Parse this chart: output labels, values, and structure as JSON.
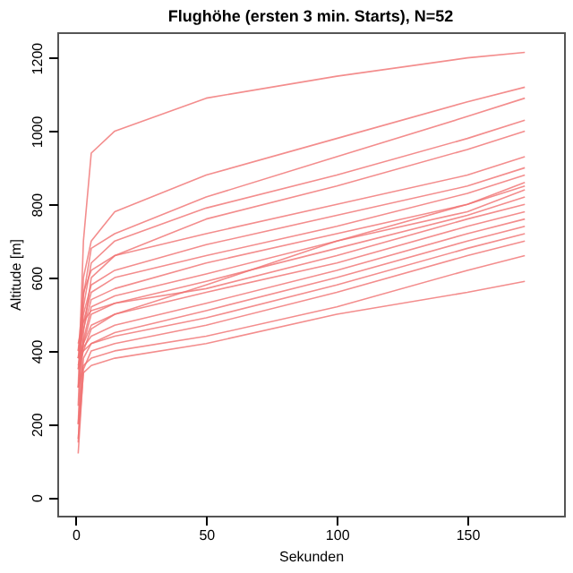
{
  "chart_data": {
    "type": "line",
    "title": "Flughöhe (ersten 3 min. Starts), N=52",
    "xlabel": "Sekunden",
    "ylabel": "Altitude [m]",
    "x": [
      1,
      3,
      6,
      15,
      50,
      100,
      150,
      172
    ],
    "xlim": [
      -7,
      187
    ],
    "xticks": [
      0,
      50,
      100,
      150
    ],
    "ylim": [
      -50,
      1270
    ],
    "yticks": [
      0,
      200,
      400,
      600,
      800,
      1000,
      1200
    ],
    "grid": false,
    "legend": false,
    "marker": "none",
    "line_style": "solid",
    "series": [
      {
        "color": "#f07070",
        "values": [
          300,
          700,
          940,
          1000,
          1090,
          1150,
          1200,
          1215
        ]
      },
      {
        "color": "#f07070",
        "values": [
          250,
          600,
          700,
          780,
          880,
          980,
          1080,
          1120
        ]
      },
      {
        "color": "#f07070",
        "values": [
          200,
          550,
          680,
          720,
          820,
          930,
          1040,
          1090
        ]
      },
      {
        "color": "#f07070",
        "values": [
          380,
          520,
          640,
          700,
          790,
          880,
          980,
          1030
        ]
      },
      {
        "color": "#f07070",
        "values": [
          150,
          450,
          600,
          660,
          760,
          850,
          950,
          1000
        ]
      },
      {
        "color": "#f07070",
        "values": [
          400,
          560,
          620,
          660,
          720,
          800,
          880,
          930
        ]
      },
      {
        "color": "#f07070",
        "values": [
          350,
          500,
          580,
          620,
          690,
          770,
          850,
          900
        ]
      },
      {
        "color": "#f07070",
        "values": [
          420,
          480,
          560,
          600,
          660,
          740,
          830,
          880
        ]
      },
      {
        "color": "#f07070",
        "values": [
          380,
          460,
          540,
          570,
          640,
          720,
          800,
          860
        ]
      },
      {
        "color": "#f07070",
        "values": [
          300,
          430,
          520,
          550,
          610,
          700,
          780,
          840
        ]
      },
      {
        "color": "#f07070",
        "values": [
          360,
          420,
          500,
          530,
          590,
          680,
          770,
          820
        ]
      },
      {
        "color": "#f07070",
        "values": [
          400,
          480,
          510,
          530,
          570,
          660,
          760,
          800
        ]
      },
      {
        "color": "#f07070",
        "values": [
          350,
          400,
          460,
          500,
          560,
          640,
          740,
          780
        ]
      },
      {
        "color": "#f07070",
        "values": [
          380,
          410,
          440,
          470,
          530,
          620,
          720,
          760
        ]
      },
      {
        "color": "#f07070",
        "values": [
          200,
          380,
          420,
          450,
          510,
          600,
          700,
          740
        ]
      },
      {
        "color": "#f07070",
        "values": [
          400,
          400,
          420,
          440,
          490,
          580,
          680,
          720
        ]
      },
      {
        "color": "#f07070",
        "values": [
          120,
          350,
          400,
          420,
          470,
          560,
          660,
          700
        ]
      },
      {
        "color": "#f07070",
        "values": [
          300,
          360,
          380,
          400,
          440,
          520,
          620,
          660
        ]
      },
      {
        "color": "#f07070",
        "values": [
          160,
          340,
          360,
          380,
          420,
          500,
          560,
          590
        ]
      },
      {
        "color": "#f07070",
        "values": [
          380,
          420,
          470,
          500,
          580,
          700,
          800,
          850
        ]
      }
    ]
  }
}
